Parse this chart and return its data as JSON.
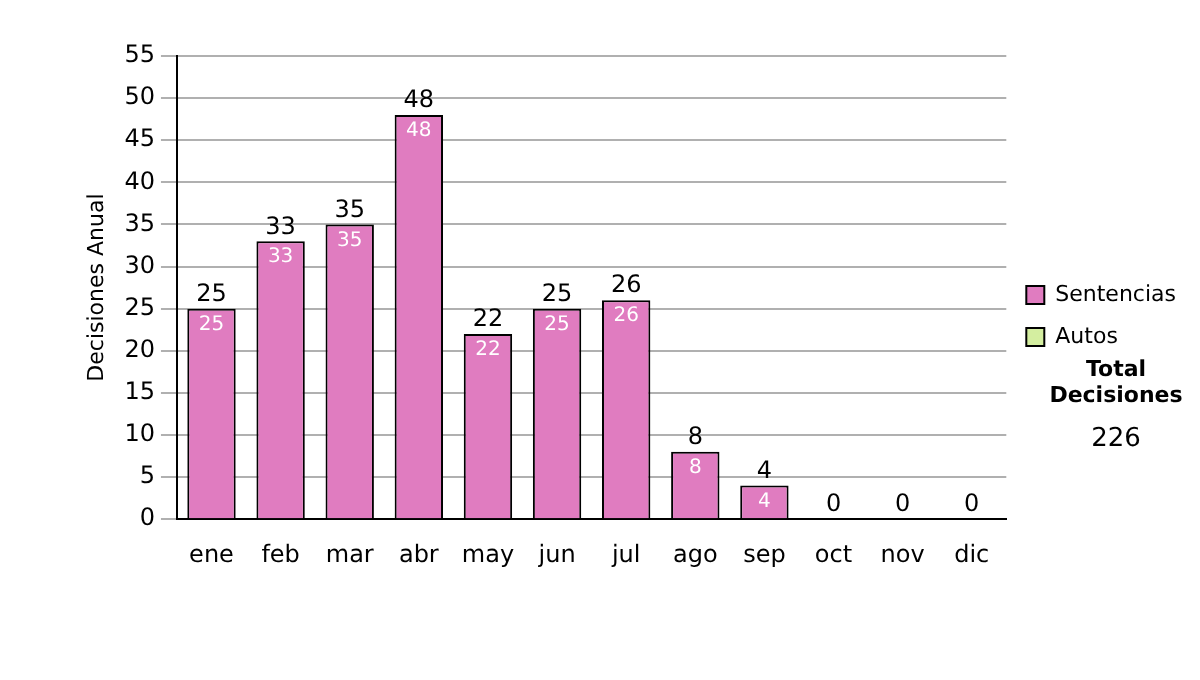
{
  "chart_data": {
    "type": "bar",
    "stacked": true,
    "ylabel": "Decisiones Anual",
    "categories": [
      "ene",
      "feb",
      "mar",
      "abr",
      "may",
      "jun",
      "jul",
      "ago",
      "sep",
      "oct",
      "nov",
      "dic"
    ],
    "series": [
      {
        "name": "Sentencias",
        "color": "#e07cc0",
        "values": [
          25,
          33,
          35,
          48,
          22,
          25,
          26,
          8,
          4,
          0,
          0,
          0
        ],
        "value_labels": [
          "25",
          "33",
          "35",
          "48",
          "22",
          "25",
          "26",
          "8",
          "4",
          null,
          null,
          null
        ]
      },
      {
        "name": "Autos",
        "color": "#d4eea0",
        "values": [
          0,
          0,
          0,
          0,
          0,
          0,
          0,
          0,
          0,
          0,
          0,
          0
        ]
      }
    ],
    "totals": [
      "25",
      "33",
      "35",
      "48",
      "22",
      "25",
      "26",
      "8",
      "4",
      "0",
      "0",
      "0"
    ],
    "ylim": [
      0,
      55
    ],
    "yticks": [
      0,
      5,
      10,
      15,
      20,
      25,
      30,
      35,
      40,
      45,
      50,
      55
    ],
    "grid": "y",
    "legend": "right",
    "annotations": [
      "Total Decisiones",
      "226"
    ]
  }
}
